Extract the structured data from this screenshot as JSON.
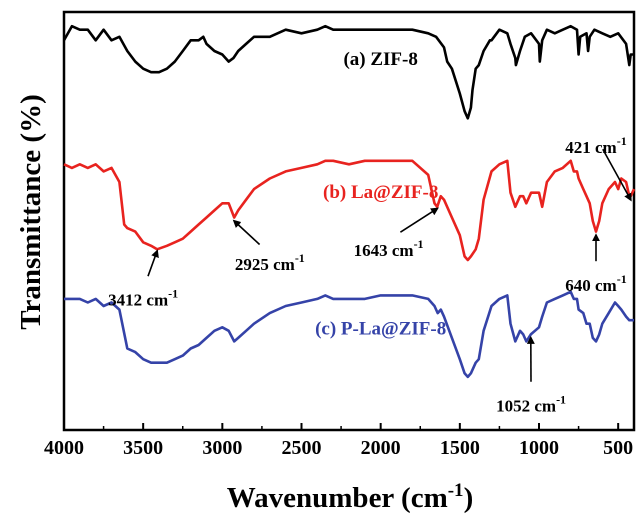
{
  "chart_data": {
    "type": "line",
    "title": "",
    "xlabel": "Wavenumber",
    "xlabel_unit_base": "(cm",
    "xlabel_unit_exp": "-1",
    "xlabel_unit_close": ")",
    "ylabel": "Transmittance (%)",
    "xlim": [
      4000,
      400
    ],
    "x_reversed": true,
    "x_ticks": [
      4000,
      3500,
      3000,
      2500,
      2000,
      1500,
      1000,
      500
    ],
    "y_ticks": [],
    "grid": false,
    "legend": "none",
    "series": [
      {
        "name": "(a) ZIF-8",
        "color": "#000000",
        "x": [
          4000,
          3950,
          3900,
          3850,
          3800,
          3750,
          3700,
          3650,
          3600,
          3550,
          3500,
          3450,
          3400,
          3350,
          3300,
          3250,
          3200,
          3150,
          3120,
          3100,
          3050,
          3000,
          2960,
          2930,
          2900,
          2850,
          2800,
          2700,
          2600,
          2500,
          2400,
          2350,
          2300,
          2200,
          2100,
          2000,
          1900,
          1800,
          1700,
          1650,
          1600,
          1580,
          1550,
          1500,
          1470,
          1450,
          1430,
          1420,
          1400,
          1380,
          1350,
          1310,
          1300,
          1250,
          1200,
          1180,
          1150,
          1146,
          1120,
          1090,
          1050,
          1000,
          995,
          980,
          950,
          900,
          850,
          800,
          760,
          750,
          740,
          700,
          690,
          680,
          650,
          600,
          550,
          500,
          450,
          430,
          421,
          400
        ],
        "y": [
          92,
          96,
          95,
          95,
          92,
          95,
          92,
          93,
          89,
          86,
          84,
          83,
          83,
          84,
          86,
          89,
          92,
          92,
          93,
          91,
          89,
          88,
          86,
          87,
          89,
          91,
          93,
          93,
          95,
          94,
          95,
          96,
          95,
          95,
          95,
          95,
          95,
          95,
          94,
          93,
          90,
          86,
          84,
          77,
          72,
          70,
          73,
          78,
          84,
          85,
          89,
          92,
          92,
          95,
          94,
          91,
          87,
          85,
          89,
          93,
          94,
          91,
          86,
          92,
          95,
          94,
          95,
          96,
          95,
          88,
          93,
          94,
          89,
          93,
          95,
          94,
          93,
          94,
          91,
          85,
          88,
          88
        ]
      },
      {
        "name": "(b) La@ZIF-8",
        "color": "#e8231f",
        "x": [
          4000,
          3950,
          3900,
          3850,
          3800,
          3750,
          3700,
          3650,
          3620,
          3600,
          3550,
          3500,
          3450,
          3412,
          3350,
          3300,
          3250,
          3200,
          3150,
          3100,
          3050,
          3000,
          2960,
          2925,
          2900,
          2850,
          2800,
          2700,
          2600,
          2500,
          2400,
          2350,
          2300,
          2200,
          2100,
          2000,
          1900,
          1800,
          1700,
          1660,
          1643,
          1620,
          1600,
          1550,
          1500,
          1470,
          1450,
          1430,
          1400,
          1380,
          1350,
          1300,
          1250,
          1200,
          1180,
          1150,
          1120,
          1100,
          1080,
          1050,
          1000,
          980,
          950,
          900,
          850,
          800,
          780,
          760,
          750,
          720,
          700,
          680,
          660,
          640,
          620,
          600,
          560,
          520,
          500,
          480,
          450,
          430,
          421,
          400
        ],
        "y": [
          57,
          56,
          57,
          56,
          57,
          55,
          56,
          52,
          40,
          39,
          38,
          35,
          34,
          33,
          34,
          35,
          36,
          38,
          40,
          42,
          44,
          46,
          46,
          42,
          44,
          47,
          50,
          53,
          55,
          56,
          57,
          58,
          58,
          57,
          58,
          58,
          58,
          58,
          54,
          46,
          45,
          48,
          47,
          42,
          37,
          31,
          30,
          31,
          33,
          36,
          47,
          55,
          57,
          58,
          49,
          45,
          48,
          48,
          46,
          49,
          49,
          45,
          52,
          55,
          56,
          58,
          55,
          55,
          53,
          50,
          48,
          46,
          41,
          38,
          41,
          46,
          50,
          52,
          50,
          53,
          52,
          48,
          48,
          50
        ]
      },
      {
        "name": "(c) P-La@ZIF-8",
        "color": "#3543a8",
        "x": [
          4000,
          3950,
          3900,
          3850,
          3800,
          3750,
          3700,
          3650,
          3600,
          3550,
          3500,
          3450,
          3412,
          3350,
          3300,
          3250,
          3200,
          3150,
          3100,
          3050,
          3000,
          2960,
          2925,
          2900,
          2850,
          2800,
          2700,
          2600,
          2500,
          2400,
          2350,
          2300,
          2200,
          2100,
          2000,
          1900,
          1800,
          1700,
          1660,
          1640,
          1620,
          1600,
          1550,
          1500,
          1470,
          1450,
          1430,
          1400,
          1380,
          1350,
          1300,
          1250,
          1200,
          1180,
          1150,
          1120,
          1100,
          1080,
          1052,
          1000,
          980,
          950,
          900,
          850,
          800,
          780,
          760,
          750,
          720,
          700,
          680,
          660,
          640,
          620,
          600,
          560,
          520,
          500,
          480,
          450,
          430,
          400
        ],
        "y": [
          19,
          19,
          19,
          18,
          19,
          17,
          18,
          16,
          5,
          4,
          2,
          1,
          1,
          1,
          2,
          3,
          5,
          6,
          8,
          10,
          11,
          10,
          7,
          8,
          10,
          12,
          15,
          17,
          18,
          19,
          20,
          19,
          19,
          19,
          20,
          20,
          20,
          19,
          17,
          15,
          16,
          14,
          8,
          2,
          -2,
          -3,
          -2,
          1,
          2,
          10,
          17,
          19,
          20,
          12,
          7,
          10,
          9,
          7,
          9,
          11,
          14,
          18,
          19,
          20,
          21,
          19,
          19,
          16,
          15,
          12,
          12,
          8,
          7,
          9,
          12,
          15,
          18,
          17,
          16,
          14,
          13,
          13
        ]
      }
    ],
    "series_labels": [
      {
        "text": "(a) ZIF-8",
        "color": "#000000",
        "at": [
          2000,
          85
        ]
      },
      {
        "text": "(b) La@ZIF-8",
        "color": "#e8231f",
        "at": [
          2000,
          47.5
        ]
      },
      {
        "text": "(c) P-La@ZIF-8",
        "color": "#3543a8",
        "at": [
          2000,
          9
        ]
      }
    ],
    "annotations": [
      {
        "text": "3412 cm",
        "exp": "-1",
        "arrow_tip": [
          3412,
          32.5
        ],
        "label_at": [
          3500,
          20
        ]
      },
      {
        "text": "2925 cm",
        "exp": "-1",
        "arrow_tip": [
          2925,
          41
        ],
        "label_at": [
          2700,
          30
        ]
      },
      {
        "text": "1643 cm",
        "exp": "-1",
        "arrow_tip": [
          1643,
          44.5
        ],
        "label_at": [
          1950,
          34
        ]
      },
      {
        "text": "640 cm",
        "exp": "-1",
        "arrow_tip": [
          640,
          37
        ],
        "label_at": [
          640,
          24
        ]
      },
      {
        "text": "421 cm",
        "exp": "-1",
        "arrow_tip": [
          421,
          47
        ],
        "label_at": [
          640,
          63
        ]
      },
      {
        "text": "1052 cm",
        "exp": "-1",
        "arrow_tip": [
          1052,
          8
        ],
        "label_at": [
          1050,
          -10
        ]
      }
    ],
    "y_range": [
      -18,
      100
    ]
  }
}
